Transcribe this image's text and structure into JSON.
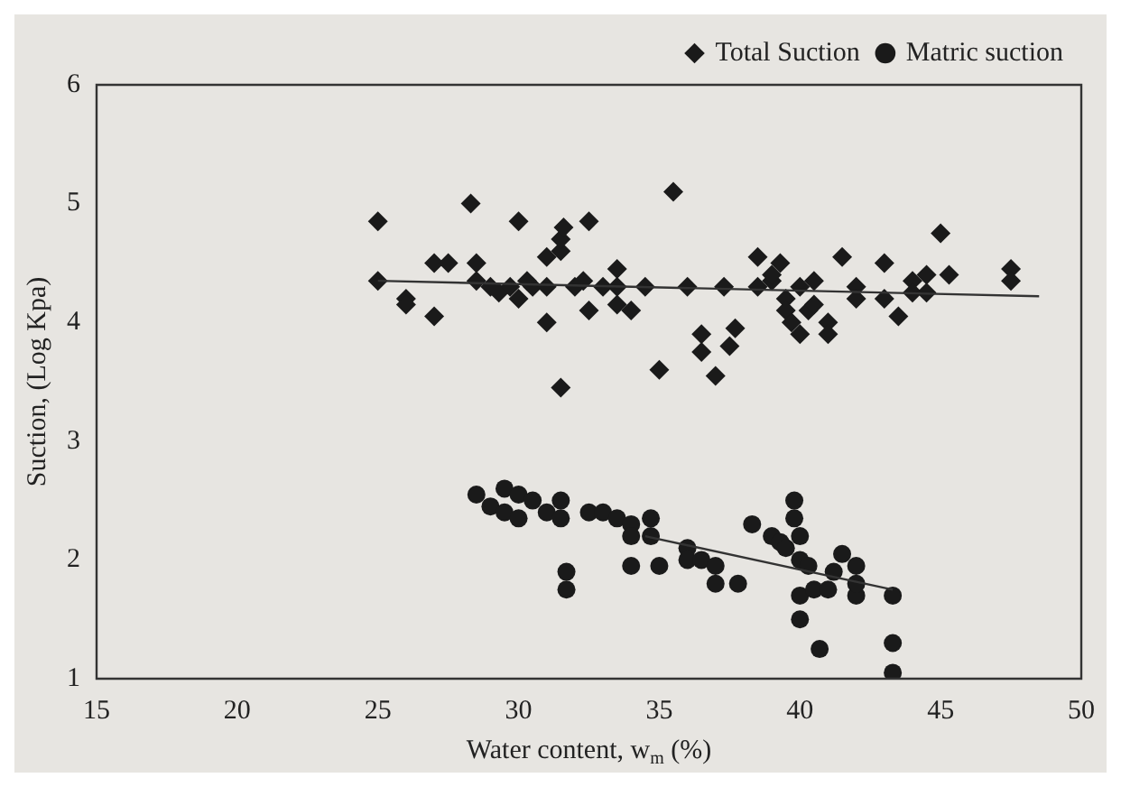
{
  "chart_data": {
    "type": "scatter",
    "xlabel": "Water content, w$_{m}$ (%)",
    "ylabel": "Suction, (Log Kpa)",
    "xlim": [
      15,
      50
    ],
    "xticks": [
      15,
      20,
      25,
      30,
      35,
      40,
      45,
      50
    ],
    "ylim": [
      1,
      6
    ],
    "yticks": [
      1,
      2,
      3,
      4,
      5,
      6
    ],
    "grid": false,
    "legend": "top right",
    "series": [
      {
        "name": "Total Suction",
        "color": "#1a1a1a",
        "marker": "diamond",
        "x": [
          25,
          25,
          26,
          26,
          27,
          27.5,
          27,
          28.3,
          28.5,
          28.5,
          29,
          29.3,
          29.7,
          30,
          30,
          30.3,
          30.5,
          31,
          31,
          31,
          31.5,
          31.5,
          31.6,
          31.5,
          32,
          32.3,
          32.5,
          32.5,
          33,
          33.5,
          33.5,
          33.5,
          34,
          34.5,
          35,
          35.5,
          36,
          36.5,
          36.5,
          37,
          37.3,
          37.5,
          37.7,
          38.5,
          38.5,
          39,
          39,
          39.3,
          39.5,
          39.5,
          39.7,
          40,
          40,
          40.3,
          40.5,
          40.5,
          41,
          41,
          41.5,
          42,
          42,
          43,
          43,
          43.5,
          44,
          44,
          44.5,
          44.5,
          45,
          45.3,
          47.5,
          47.5
        ],
        "values": [
          4.85,
          4.35,
          4.2,
          4.15,
          4.5,
          4.5,
          4.05,
          5.0,
          4.5,
          4.35,
          4.3,
          4.25,
          4.3,
          4.85,
          4.2,
          4.35,
          4.3,
          4.55,
          4.3,
          4.0,
          4.6,
          4.7,
          4.8,
          3.45,
          4.3,
          4.35,
          4.85,
          4.1,
          4.3,
          4.15,
          4.45,
          4.3,
          4.1,
          4.3,
          3.6,
          5.1,
          4.3,
          3.9,
          3.75,
          3.55,
          4.3,
          3.8,
          3.95,
          4.55,
          4.3,
          4.35,
          4.4,
          4.5,
          4.2,
          4.1,
          4.0,
          4.3,
          3.9,
          4.1,
          4.35,
          4.15,
          4.0,
          3.9,
          4.55,
          4.3,
          4.2,
          4.5,
          4.2,
          4.05,
          4.35,
          4.25,
          4.4,
          4.25,
          4.75,
          4.4,
          4.45,
          4.35
        ]
      },
      {
        "name": "Matric suction",
        "color": "#1a1a1a",
        "marker": "circle",
        "x": [
          28.5,
          29,
          29.5,
          29.5,
          30,
          30,
          30.5,
          31,
          31.5,
          31.5,
          31.7,
          31.7,
          32.5,
          33,
          33.5,
          34,
          34,
          34,
          34.7,
          34.7,
          35,
          36,
          36,
          36.5,
          37,
          37,
          37.8,
          38.3,
          39,
          39.3,
          39.5,
          39.8,
          39.8,
          40,
          40,
          40.3,
          40,
          40,
          40.5,
          40.7,
          41,
          41.2,
          41.5,
          42,
          42,
          42,
          43.3,
          43.3,
          43.3
        ],
        "values": [
          2.55,
          2.45,
          2.6,
          2.4,
          2.55,
          2.35,
          2.5,
          2.4,
          2.5,
          2.35,
          1.9,
          1.75,
          2.4,
          2.4,
          2.35,
          2.3,
          2.2,
          1.95,
          2.35,
          2.2,
          1.95,
          2.1,
          2.0,
          2.0,
          1.95,
          1.8,
          1.8,
          2.3,
          2.2,
          2.15,
          2.1,
          2.5,
          2.35,
          2.2,
          2.0,
          1.95,
          1.7,
          1.5,
          1.75,
          1.25,
          1.75,
          1.9,
          2.05,
          1.7,
          1.95,
          1.8,
          1.7,
          1.3,
          1.05
        ]
      },
      {
        "type": "line",
        "color": "#333333",
        "marker": "none",
        "x": [
          25,
          48.5
        ],
        "values": [
          4.35,
          4.22
        ]
      },
      {
        "type": "line",
        "color": "#333333",
        "marker": "none",
        "x": [
          34.5,
          43.3
        ],
        "values": [
          2.2,
          1.75
        ]
      }
    ]
  }
}
